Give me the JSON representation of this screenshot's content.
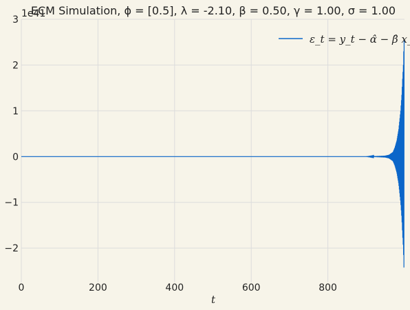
{
  "chart_data": {
    "type": "line",
    "title": "ECM Simulation, ϕ = [0.5], λ = -2.10, β = 0.50, γ = 1.00, σ = 1.00",
    "xlabel": "t",
    "ylabel": "",
    "y_offset_label": "1e41",
    "xlim": [
      0,
      1000
    ],
    "ylim": [
      -2.75,
      3.0
    ],
    "x_ticks": [
      0,
      200,
      400,
      600,
      800
    ],
    "y_ticks": [
      -2,
      -1,
      0,
      1,
      2,
      3
    ],
    "y_scale_note": "values in units of 1e41",
    "grid": true,
    "legend_position": "top-right",
    "series": [
      {
        "name": "ε_t = y_t − α̂ − β̂ x_t",
        "color": "#0b66c9",
        "x": [
          0,
          100,
          200,
          300,
          400,
          500,
          600,
          700,
          800,
          900,
          950,
          960,
          970,
          975,
          980,
          985,
          990,
          993,
          995,
          997,
          998,
          999
        ],
        "envelope": [
          0.0,
          0.0,
          0.0,
          0.0,
          0.0,
          0.0,
          0.0,
          0.0,
          0.0,
          0.0,
          0.02,
          0.04,
          0.1,
          0.2,
          0.35,
          0.6,
          1.0,
          1.35,
          1.7,
          2.0,
          2.3,
          2.55
        ]
      }
    ]
  }
}
